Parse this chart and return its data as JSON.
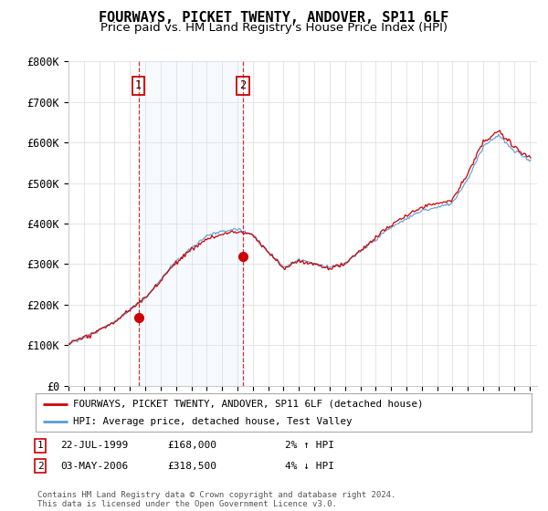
{
  "title": "FOURWAYS, PICKET TWENTY, ANDOVER, SP11 6LF",
  "subtitle": "Price paid vs. HM Land Registry's House Price Index (HPI)",
  "ylabel_ticks": [
    "£0",
    "£100K",
    "£200K",
    "£300K",
    "£400K",
    "£500K",
    "£600K",
    "£700K",
    "£800K"
  ],
  "ytick_values": [
    0,
    100000,
    200000,
    300000,
    400000,
    500000,
    600000,
    700000,
    800000
  ],
  "ylim": [
    0,
    800000
  ],
  "xlim_start": 1995.0,
  "xlim_end": 2025.5,
  "legend_line1": "FOURWAYS, PICKET TWENTY, ANDOVER, SP11 6LF (detached house)",
  "legend_line2": "HPI: Average price, detached house, Test Valley",
  "sale1_label": "1",
  "sale1_date": "22-JUL-1999",
  "sale1_price": "£168,000",
  "sale1_hpi": "2% ↑ HPI",
  "sale1_year": 1999.55,
  "sale1_value": 168000,
  "sale2_label": "2",
  "sale2_date": "03-MAY-2006",
  "sale2_price": "£318,500",
  "sale2_hpi": "4% ↓ HPI",
  "sale2_year": 2006.34,
  "sale2_value": 318500,
  "footer": "Contains HM Land Registry data © Crown copyright and database right 2024.\nThis data is licensed under the Open Government Licence v3.0.",
  "hpi_color": "#5b9bd5",
  "price_color": "#cc0000",
  "vline_color": "#cc0000",
  "shade_color": "#ddeeff",
  "grid_color": "#e0e0e0",
  "background_color": "#ffffff",
  "title_fontsize": 11,
  "subtitle_fontsize": 9.5
}
